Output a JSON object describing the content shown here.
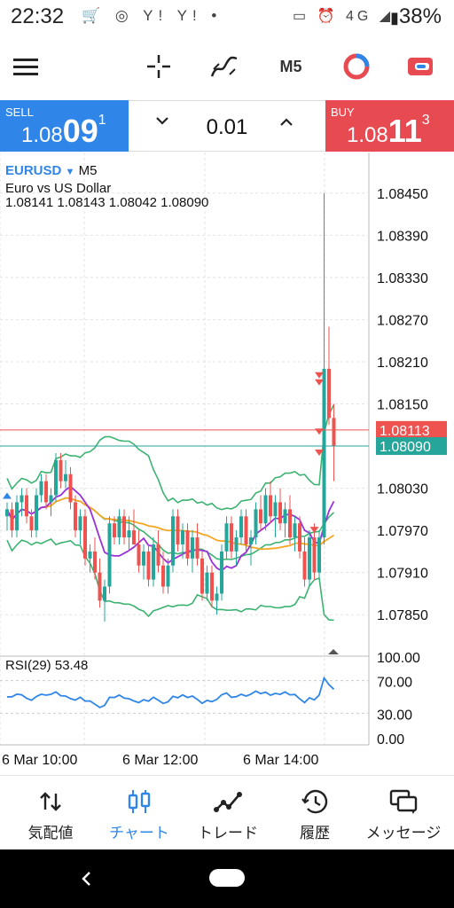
{
  "status_bar": {
    "time": "22:32",
    "battery": "38%",
    "network": "4G"
  },
  "toolbar": {
    "timeframe": "M5"
  },
  "trade": {
    "sell_label": "SELL",
    "sell_price_prefix": "1.08",
    "sell_price_big": "09",
    "sell_price_sup": "1",
    "buy_label": "BUY",
    "buy_price_prefix": "1.08",
    "buy_price_big": "11",
    "buy_price_sup": "3",
    "volume": "0.01"
  },
  "chart": {
    "symbol": "EURUSD",
    "timeframe": "M5",
    "description": "Euro vs US Dollar",
    "ohlc": "1.08141 1.08143 1.08042 1.08090",
    "bid_tag": "1.08090",
    "ask_tag": "1.08113",
    "indicator_label": "RSI(29) 53.48",
    "colors": {
      "bull": "#26a69a",
      "bear": "#ef5350",
      "band": "#3cb371",
      "ma_fast": "#9b30d9",
      "ma_slow": "#f5a623",
      "rsi": "#2f86e8",
      "bid_line": "#26a69a",
      "ask_line": "#ef5350"
    }
  },
  "chart_data": {
    "type": "candlestick",
    "price_ticks": [
      "1.08450",
      "1.08390",
      "1.08330",
      "1.08270",
      "1.08210",
      "1.08150",
      "1.08030",
      "1.07970",
      "1.07910",
      "1.07850"
    ],
    "ylim": [
      1.0782,
      1.0848
    ],
    "time_ticks": [
      "6 Mar 10:00",
      "6 Mar 12:00",
      "6 Mar 14:00"
    ],
    "rsi_ticks": [
      "100.00",
      "70.00",
      "30.00",
      "0.00"
    ],
    "rsi_last": 53.48,
    "candles": [
      [
        1.0799,
        1.0801,
        1.0797,
        1.08
      ],
      [
        1.08,
        1.0801,
        1.0796,
        1.0797
      ],
      [
        1.0797,
        1.0802,
        1.0796,
        1.0801
      ],
      [
        1.0801,
        1.0803,
        1.0799,
        1.0802
      ],
      [
        1.0802,
        1.0803,
        1.0798,
        1.0799
      ],
      [
        1.0799,
        1.08,
        1.0796,
        1.0797
      ],
      [
        1.0797,
        1.0803,
        1.0796,
        1.0802
      ],
      [
        1.0802,
        1.0805,
        1.0801,
        1.0804
      ],
      [
        1.0804,
        1.0805,
        1.08,
        1.0801
      ],
      [
        1.0801,
        1.0803,
        1.0799,
        1.0802
      ],
      [
        1.0802,
        1.0808,
        1.0801,
        1.0807
      ],
      [
        1.0807,
        1.0808,
        1.0803,
        1.0804
      ],
      [
        1.0804,
        1.0807,
        1.0803,
        1.0805
      ],
      [
        1.0805,
        1.0806,
        1.08,
        1.0801
      ],
      [
        1.0801,
        1.0802,
        1.0796,
        1.0797
      ],
      [
        1.0797,
        1.08,
        1.0795,
        1.0799
      ],
      [
        1.0799,
        1.08,
        1.0792,
        1.0793
      ],
      [
        1.0793,
        1.0795,
        1.0791,
        1.0794
      ],
      [
        1.0794,
        1.0796,
        1.079,
        1.0791
      ],
      [
        1.0791,
        1.0793,
        1.0786,
        1.0787
      ],
      [
        1.0787,
        1.079,
        1.0784,
        1.0789
      ],
      [
        1.0789,
        1.0799,
        1.0788,
        1.0798
      ],
      [
        1.0798,
        1.0799,
        1.0795,
        1.0796
      ],
      [
        1.0796,
        1.08,
        1.0795,
        1.0799
      ],
      [
        1.0799,
        1.08,
        1.0795,
        1.0796
      ],
      [
        1.0796,
        1.0799,
        1.0794,
        1.0797
      ],
      [
        1.0797,
        1.08,
        1.0795,
        1.0795
      ],
      [
        1.0795,
        1.0797,
        1.0791,
        1.0792
      ],
      [
        1.0792,
        1.0795,
        1.079,
        1.0794
      ],
      [
        1.0794,
        1.0795,
        1.0789,
        1.079
      ],
      [
        1.079,
        1.0796,
        1.0789,
        1.0795
      ],
      [
        1.0795,
        1.0797,
        1.0791,
        1.0792
      ],
      [
        1.0792,
        1.0794,
        1.0788,
        1.0789
      ],
      [
        1.0789,
        1.0793,
        1.0788,
        1.0792
      ],
      [
        1.0792,
        1.08,
        1.0791,
        1.0799
      ],
      [
        1.0799,
        1.08,
        1.0794,
        1.0795
      ],
      [
        1.0795,
        1.0798,
        1.0793,
        1.0797
      ],
      [
        1.0797,
        1.0798,
        1.0792,
        1.0793
      ],
      [
        1.0793,
        1.0797,
        1.0791,
        1.0796
      ],
      [
        1.0796,
        1.0798,
        1.0792,
        1.0793
      ],
      [
        1.0793,
        1.0794,
        1.0787,
        1.0788
      ],
      [
        1.0788,
        1.0792,
        1.0787,
        1.0791
      ],
      [
        1.0791,
        1.0792,
        1.0786,
        1.0787
      ],
      [
        1.0787,
        1.0789,
        1.0785,
        1.0788
      ],
      [
        1.0788,
        1.0795,
        1.0787,
        1.0794
      ],
      [
        1.0794,
        1.0799,
        1.0793,
        1.0798
      ],
      [
        1.0798,
        1.0799,
        1.0793,
        1.0794
      ],
      [
        1.0794,
        1.0797,
        1.0792,
        1.0796
      ],
      [
        1.0796,
        1.08,
        1.0795,
        1.0799
      ],
      [
        1.0799,
        1.08,
        1.0794,
        1.0795
      ],
      [
        1.0795,
        1.0797,
        1.0792,
        1.0796
      ],
      [
        1.0796,
        1.0801,
        1.0795,
        1.08
      ],
      [
        1.08,
        1.0802,
        1.0797,
        1.0798
      ],
      [
        1.0798,
        1.0803,
        1.0797,
        1.0802
      ],
      [
        1.0802,
        1.0804,
        1.0798,
        1.0799
      ],
      [
        1.0799,
        1.0802,
        1.0796,
        1.0801
      ],
      [
        1.0801,
        1.0803,
        1.0797,
        1.0798
      ],
      [
        1.0798,
        1.0801,
        1.0796,
        1.08
      ],
      [
        1.08,
        1.0802,
        1.0795,
        1.0796
      ],
      [
        1.0796,
        1.0799,
        1.0794,
        1.0798
      ],
      [
        1.0798,
        1.0799,
        1.0793,
        1.0794
      ],
      [
        1.0794,
        1.0796,
        1.0789,
        1.079
      ],
      [
        1.079,
        1.0797,
        1.0789,
        1.0796
      ],
      [
        1.0796,
        1.0798,
        1.079,
        1.0791
      ],
      [
        1.0791,
        1.0797,
        1.079,
        1.0796
      ],
      [
        1.0796,
        1.0845,
        1.0795,
        1.082
      ],
      [
        1.082,
        1.0826,
        1.0812,
        1.0813
      ],
      [
        1.0813,
        1.0815,
        1.0804,
        1.0809
      ]
    ]
  },
  "bottom_nav": {
    "quotes": "気配値",
    "chart": "チャート",
    "trade": "トレード",
    "history": "履歴",
    "messages": "メッセージ"
  }
}
